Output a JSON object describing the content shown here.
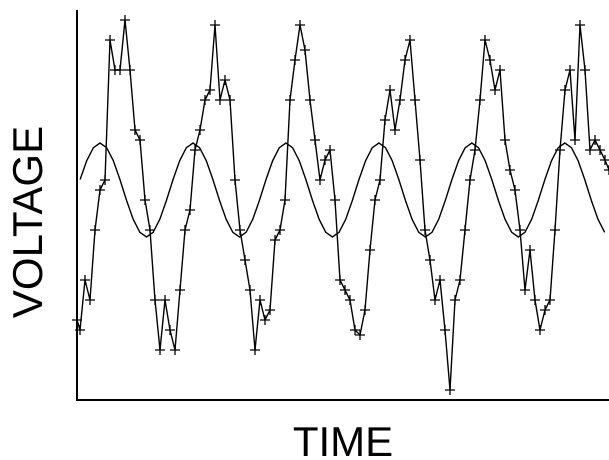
{
  "chart_data": {
    "type": "line",
    "x_label": "TIME",
    "y_label": "VOLTAGE",
    "xlim": [
      0,
      532
    ],
    "ylim": [
      0,
      390
    ],
    "series": [
      {
        "color": "#000000",
        "marker": "+",
        "x": [
          0,
          3,
          8,
          13,
          18,
          23,
          28,
          33,
          38,
          43,
          48,
          53,
          58,
          63,
          68,
          73,
          78,
          83,
          88,
          93,
          98,
          103,
          108,
          113,
          118,
          123,
          128,
          133,
          138,
          143,
          148,
          153,
          158,
          163,
          168,
          173,
          178,
          183,
          188,
          193,
          198,
          203,
          208,
          213,
          218,
          223,
          228,
          233,
          238,
          243,
          248,
          253,
          258,
          263,
          268,
          273,
          278,
          283,
          288,
          293,
          298,
          303,
          308,
          313,
          318,
          323,
          328,
          333,
          338,
          343,
          348,
          353,
          358,
          363,
          368,
          373,
          378,
          383,
          388,
          393,
          398,
          403,
          408,
          413,
          418,
          423,
          428,
          433,
          438,
          443,
          448,
          453,
          458,
          463,
          468,
          473,
          478,
          483,
          488,
          493,
          498,
          503,
          508,
          513,
          518,
          523,
          528,
          532
        ],
        "values": [
          80,
          70,
          120,
          100,
          170,
          210,
          220,
          360,
          330,
          330,
          380,
          330,
          270,
          260,
          200,
          170,
          100,
          50,
          100,
          70,
          50,
          110,
          170,
          190,
          250,
          270,
          300,
          310,
          375,
          300,
          320,
          300,
          220,
          170,
          140,
          110,
          50,
          100,
          80,
          90,
          160,
          170,
          200,
          300,
          340,
          375,
          350,
          300,
          260,
          220,
          240,
          250,
          200,
          120,
          110,
          100,
          70,
          65,
          90,
          150,
          200,
          220,
          280,
          310,
          270,
          300,
          340,
          360,
          300,
          240,
          170,
          140,
          100,
          120,
          70,
          10,
          100,
          120,
          170,
          220,
          250,
          300,
          360,
          340,
          310,
          330,
          260,
          230,
          210,
          170,
          110,
          150,
          100,
          70,
          90,
          100,
          170,
          250,
          310,
          330,
          260,
          375,
          330,
          250,
          260,
          250,
          240,
          230
        ]
      },
      {
        "color": "#000000",
        "marker": "none",
        "x": [
          3.1,
          9.74,
          16.38,
          23.02,
          29.66,
          36.3,
          42.94,
          49.58,
          56.22,
          62.86,
          69.5,
          76.14,
          82.78,
          89.42,
          96.06,
          102.7,
          109.34,
          115.98,
          122.62,
          129.26,
          135.9,
          142.54,
          149.18,
          155.82,
          162.46,
          169.1,
          175.74,
          182.38,
          189.02,
          195.66,
          202.3,
          208.94,
          215.58,
          222.22,
          228.86,
          235.5,
          242.14,
          248.78,
          255.42,
          262.06,
          268.7,
          275.34,
          281.98,
          288.62,
          295.26,
          301.9,
          308.54,
          315.18,
          321.82,
          328.46,
          335.1,
          341.74,
          348.38,
          355.02,
          361.66,
          368.3,
          374.94,
          381.58,
          388.22,
          394.86,
          401.5,
          408.14,
          414.78,
          421.42,
          428.06,
          434.7,
          441.34,
          447.98,
          454.62,
          461.26,
          467.9,
          474.54,
          481.18,
          487.82,
          494.46,
          501.1,
          507.74,
          514.38,
          521.02,
          527.66
        ],
        "values": [
          220.5,
          239.3,
          252.3,
          257,
          252.3,
          239.3,
          220.5,
          199.5,
          180.7,
          167.7,
          163,
          167.7,
          180.7,
          199.5,
          220.5,
          239.3,
          252.3,
          257,
          252.3,
          239.3,
          220.5,
          199.5,
          180.7,
          167.7,
          163,
          167.7,
          180.7,
          199.5,
          220.5,
          239.3,
          252.3,
          257,
          252.3,
          239.3,
          220.5,
          199.5,
          180.7,
          167.7,
          163,
          167.7,
          180.7,
          199.5,
          220.5,
          239.3,
          252.3,
          257,
          252.3,
          239.3,
          220.5,
          199.5,
          180.7,
          167.7,
          163,
          167.7,
          180.7,
          199.5,
          220.5,
          239.3,
          252.3,
          257,
          252.3,
          239.3,
          220.5,
          199.5,
          180.7,
          167.7,
          163,
          167.7,
          180.7,
          199.5,
          220.5,
          239.3,
          252.3,
          257,
          252.3,
          239.3,
          220.5,
          199.5,
          180.7,
          167.7
        ]
      }
    ]
  }
}
